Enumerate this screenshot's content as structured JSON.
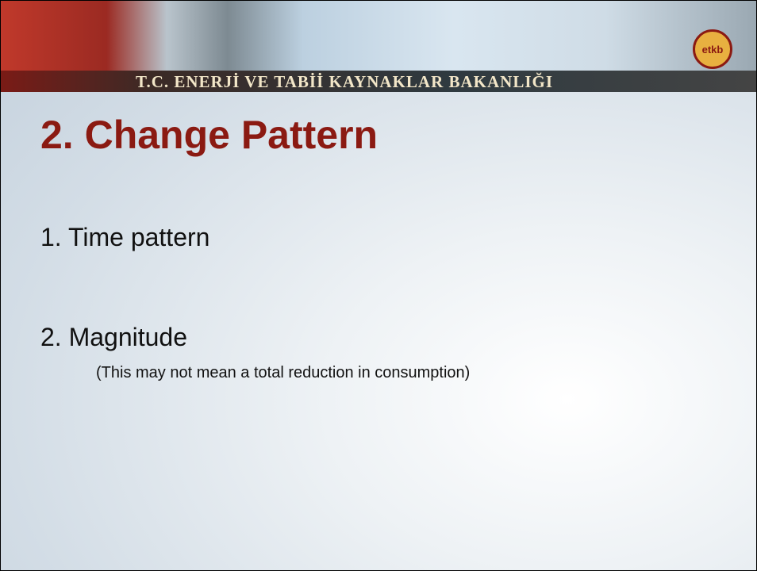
{
  "header": {
    "banner": "T.C. ENERJİ VE TABİİ KAYNAKLAR BAKANLIĞI",
    "logo": "etkb"
  },
  "slide": {
    "title": "2. Change Pattern",
    "items": [
      {
        "text": "1. Time pattern"
      },
      {
        "text": "2. Magnitude",
        "note": "(This may not mean a total reduction in consumption)"
      }
    ]
  }
}
